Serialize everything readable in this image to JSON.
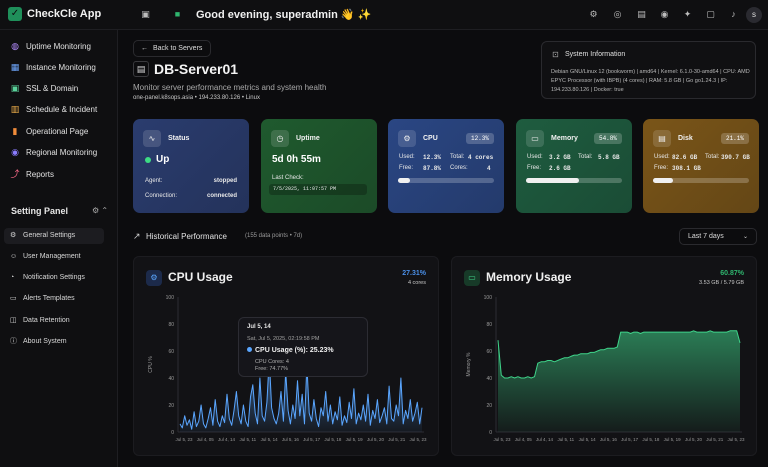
{
  "app": {
    "name": "CheckCle App",
    "greeting": "Good evening, superadmin 👋 ✨",
    "avatar": "s"
  },
  "sidebar": {
    "items": [
      {
        "label": "Uptime Monitoring",
        "icon": "globe-icon"
      },
      {
        "label": "Instance Monitoring",
        "icon": "server-icon"
      },
      {
        "label": "SSL & Domain",
        "icon": "lock-icon"
      },
      {
        "label": "Schedule & Incident",
        "icon": "calendar-icon"
      },
      {
        "label": "Operational Page",
        "icon": "bar-chart-icon"
      },
      {
        "label": "Regional Monitoring",
        "icon": "pin-icon"
      },
      {
        "label": "Reports",
        "icon": "line-chart-icon"
      }
    ],
    "settings_title": "Setting Panel",
    "settings": [
      {
        "label": "General Settings",
        "icon": "gear-icon"
      },
      {
        "label": "User Management",
        "icon": "user-icon"
      },
      {
        "label": "Notification Settings",
        "icon": "bell-icon"
      },
      {
        "label": "Alerts Templates",
        "icon": "template-icon"
      },
      {
        "label": "Data Retention",
        "icon": "database-icon"
      },
      {
        "label": "About System",
        "icon": "info-icon"
      }
    ]
  },
  "header": {
    "back": "Back to Servers",
    "server_name": "DB-Server01",
    "subtitle": "Monitor server performance metrics and system health",
    "host": "one-panel.k8sops.asia • 194.233.80.126 • Linux"
  },
  "sysinfo": {
    "title": "System Information",
    "details": "Debian GNU/Linux 12 (bookworm) | amd64 | Kernel: 6.1.0-30-amd64 | CPU: AMD EPYC Processor (with IBPB) (4 cores) | RAM: 5.8 GB | Go go1.24.3 | IP: 194.233.80.126 | Docker: true"
  },
  "cards": {
    "status": {
      "title": "Status",
      "value": "Up",
      "agent_label": "Agent:",
      "agent_value": "stopped",
      "conn_label": "Connection:",
      "conn_value": "connected",
      "color": "#2a3c6e"
    },
    "uptime": {
      "title": "Uptime",
      "value": "5d 0h 55m",
      "check_label": "Last Check:",
      "check_value": "7/5/2025, 11:07:57 PM",
      "color": "#1f5a2e"
    },
    "cpu": {
      "title": "CPU",
      "badge": "12.3%",
      "used_label": "Used:",
      "used": "12.3%",
      "total_label": "Total:",
      "total": "4 cores",
      "free_label": "Free:",
      "free": "87.8%",
      "cores_label": "Cores:",
      "cores": "4",
      "progress": 0.123,
      "color": "#2a4683"
    },
    "memory": {
      "title": "Memory",
      "badge": "54.8%",
      "used_label": "Used:",
      "used": "3.2 GB",
      "total_label": "Total:",
      "total": "5.8 GB",
      "free_label": "Free:",
      "free": "2.6 GB",
      "progress": 0.548,
      "color": "#1e5c3f"
    },
    "disk": {
      "title": "Disk",
      "badge": "21.1%",
      "used_label": "Used:",
      "used": "82.6 GB",
      "total_label": "Total:",
      "total": "390.7 GB",
      "free_label": "Free:",
      "free": "308.1 GB",
      "progress": 0.211,
      "color": "#7a5518"
    }
  },
  "history": {
    "title": "Historical Performance",
    "sub": "(155 data points • 7d)",
    "range": "Last 7 days"
  },
  "cpu_panel": {
    "title": "CPU Usage",
    "value": "27.31%",
    "sub": "4 cores",
    "accent": "#4a8fe8"
  },
  "mem_panel": {
    "title": "Memory Usage",
    "value": "60.87%",
    "sub": "3.53 GB / 5.79 GB",
    "accent": "#2fb56e"
  },
  "tooltip": {
    "date": "Jul 5, 14",
    "time": "Sat, Jul 5, 2025, 02:19:58 PM",
    "series": "CPU Usage (%): 25.23%",
    "cores": "CPU Cores: 4",
    "free": "Free: 74.77%"
  },
  "chart_data": [
    {
      "type": "area",
      "title": "CPU Usage",
      "ylabel": "CPU %",
      "ylim": [
        0,
        100
      ],
      "yticks": [
        "0",
        "20",
        "40",
        "60",
        "80",
        "100"
      ],
      "xticks": [
        "Jul 5, 23",
        "Jul 4, 05",
        "Jul 4, 14",
        "Jul 5, 11",
        "Jul 5, 14",
        "Jul 5, 16",
        "Jul 5, 17",
        "Jul 5, 18",
        "Jul 5, 19",
        "Jul 5, 20",
        "Jul 5, 21",
        "Jul 5, 23"
      ],
      "values": [
        6,
        3,
        12,
        5,
        9,
        2,
        15,
        4,
        8,
        20,
        6,
        3,
        10,
        18,
        5,
        24,
        8,
        4,
        12,
        7,
        28,
        10,
        5,
        16,
        30,
        12,
        6,
        20,
        8,
        4,
        26,
        35,
        14,
        6,
        40,
        12,
        8,
        22,
        55,
        18,
        10,
        6,
        14,
        30,
        8,
        45,
        16,
        6,
        20,
        10,
        38,
        12,
        28,
        6,
        50,
        14,
        8,
        24,
        10,
        4,
        18,
        12,
        30,
        8,
        20,
        6,
        15,
        9,
        26,
        5,
        12,
        7,
        22,
        10,
        32,
        6,
        14,
        9,
        20,
        8,
        28,
        5,
        16,
        10,
        24,
        7,
        12,
        18,
        6,
        34,
        10,
        8,
        20,
        12,
        40,
        6,
        16,
        10,
        24,
        8,
        14,
        22,
        6,
        18
      ],
      "color": "#5aa6ff"
    },
    {
      "type": "area",
      "title": "Memory Usage",
      "ylabel": "Memory %",
      "ylim": [
        0,
        100
      ],
      "yticks": [
        "0",
        "20",
        "40",
        "60",
        "80",
        "100"
      ],
      "xticks": [
        "Jul 5, 23",
        "Jul 4, 05",
        "Jul 4, 14",
        "Jul 5, 11",
        "Jul 5, 14",
        "Jul 5, 16",
        "Jul 5, 17",
        "Jul 5, 18",
        "Jul 5, 19",
        "Jul 5, 20",
        "Jul 5, 21",
        "Jul 5, 23"
      ],
      "values": [
        68,
        42,
        40,
        40,
        41,
        40,
        41,
        40,
        40,
        41,
        40,
        41,
        51,
        52,
        52,
        53,
        53,
        52,
        53,
        54,
        55,
        55,
        56,
        57,
        57,
        58,
        58,
        58,
        59,
        59,
        60,
        61,
        61,
        62,
        62,
        62,
        63,
        74,
        74,
        74,
        73,
        74,
        74,
        73,
        74,
        74,
        74,
        74,
        74,
        74,
        74,
        74,
        74,
        74,
        74,
        74,
        74,
        74,
        74,
        75,
        74,
        74,
        74,
        74,
        75,
        74,
        74,
        74,
        74,
        74,
        75,
        75,
        75,
        66
      ],
      "color": "#3fd48a"
    }
  ]
}
